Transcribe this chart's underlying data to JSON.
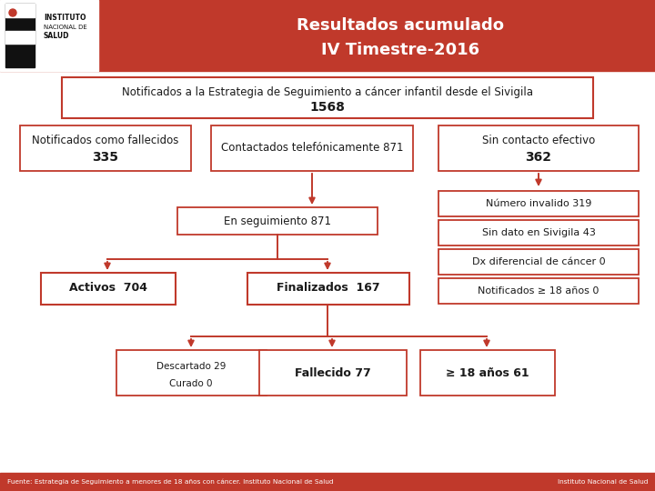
{
  "title_line1": "Resultados acumulado",
  "title_line2": "IV Timestre-2016",
  "red": "#c0392b",
  "white": "#ffffff",
  "black": "#111111",
  "dark": "#1a1a1a",
  "light_gray": "#e8e8e8",
  "footer_text": "Fuente: Estrategia de Seguimiento a menores de 18 años con cáncer. Instituto Nacional de Salud",
  "footer_right": "Instituto Nacional de Salud",
  "top_box_line1": "Notificados a la Estrategia de Seguimiento a cáncer infantil desde el Sivigila",
  "top_box_line2": "1568",
  "b1_line1": "Notificados como fallecidos",
  "b1_line2": "335",
  "b2_line1": "Contactados telefónicamente 871",
  "b3_line1": "Sin contacto efectivo",
  "b3_line2": "362",
  "r1": "Número invalido 319",
  "r2": "Sin dato en Sivigila 43",
  "r3": "Dx diferencial de cáncer 0",
  "r4": "Notificados ≥ 18 años 0",
  "seg_line1": "En seguimiento 871",
  "act_line1": "Activos",
  "act_line2": "704",
  "fin_line1": "Finalizados",
  "fin_line2": "167",
  "d_line1": "Descartado 29",
  "d_line2": "Curado 0",
  "f_line1": "Fallecido 77",
  "m_line1": "≥ 18 años 61"
}
